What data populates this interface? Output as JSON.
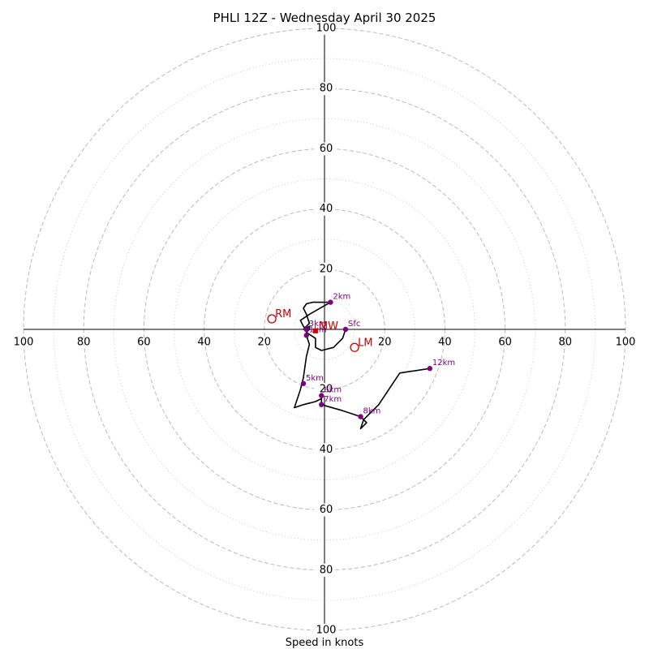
{
  "chart_data": {
    "type": "hodograph",
    "title": "PHLI 12Z - Wednesday April 30 2025",
    "xlabel": "Speed in knots",
    "ring_max": 100,
    "rings_dashed": [
      20,
      40,
      60,
      80,
      100
    ],
    "rings_dotted": [
      10,
      30,
      50,
      70,
      90
    ],
    "tick_labels": {
      "top": [
        "20",
        "40",
        "60",
        "80",
        "100"
      ],
      "bottom": [
        "20",
        "40",
        "60",
        "80",
        "100"
      ],
      "left": [
        "20",
        "40",
        "60",
        "80",
        "100"
      ],
      "right": [
        "20",
        "40",
        "60",
        "80",
        "100"
      ]
    },
    "trace_color": "#000000",
    "point_color": "#800080",
    "motion_color": "#cc0000",
    "grid_color": "#bbbbbb",
    "trace": [
      [
        7,
        0
      ],
      [
        6,
        -3
      ],
      [
        3,
        -6
      ],
      [
        -1,
        -7
      ],
      [
        -3,
        -6
      ],
      [
        -3,
        -3
      ],
      [
        -6,
        -1
      ],
      [
        -5,
        0
      ],
      [
        -5,
        1
      ],
      [
        -7,
        0
      ],
      [
        -5,
        2
      ],
      [
        -6,
        5
      ],
      [
        -7,
        7
      ],
      [
        -6,
        8.5
      ],
      [
        -4,
        9
      ],
      [
        2,
        9
      ],
      [
        -5,
        5
      ],
      [
        -8,
        3
      ],
      [
        -7,
        1
      ],
      [
        -6,
        0
      ],
      [
        -6,
        -2
      ],
      [
        -5,
        -5
      ],
      [
        -6,
        -9
      ],
      [
        -7,
        -16
      ],
      [
        -8,
        -20
      ],
      [
        -10,
        -26
      ],
      [
        -7,
        -25
      ],
      [
        -3,
        -24
      ],
      [
        -1,
        -23
      ],
      [
        -1,
        -22
      ],
      [
        -1,
        -23.5
      ],
      [
        -1,
        -25
      ],
      [
        6,
        -27
      ],
      [
        12,
        -29
      ],
      [
        14,
        -31
      ],
      [
        12,
        -33
      ],
      [
        13,
        -30
      ],
      [
        18,
        -25
      ],
      [
        25,
        -14.5
      ],
      [
        35,
        -13
      ]
    ],
    "points": [
      {
        "label": "Sfc",
        "u": 7,
        "v": 0
      },
      {
        "label": "2km",
        "u": 2,
        "v": 9
      },
      {
        "label": "3km",
        "u": -6,
        "v": 0
      },
      {
        "label": "1km",
        "u": -6,
        "v": -2
      },
      {
        "label": "5km",
        "u": -7,
        "v": -18
      },
      {
        "label": "6km",
        "u": -1,
        "v": -22
      },
      {
        "label": "7km",
        "u": -1,
        "v": -25
      },
      {
        "label": "8km",
        "u": 12,
        "v": -29
      },
      {
        "label": "12km",
        "u": 35,
        "v": -13
      }
    ],
    "motions": [
      {
        "label": "RM",
        "u": -17.5,
        "v": 3.5
      },
      {
        "label": "LM",
        "u": 10,
        "v": -6
      },
      {
        "label": "MW",
        "u": -3,
        "v": -0.5
      }
    ]
  }
}
